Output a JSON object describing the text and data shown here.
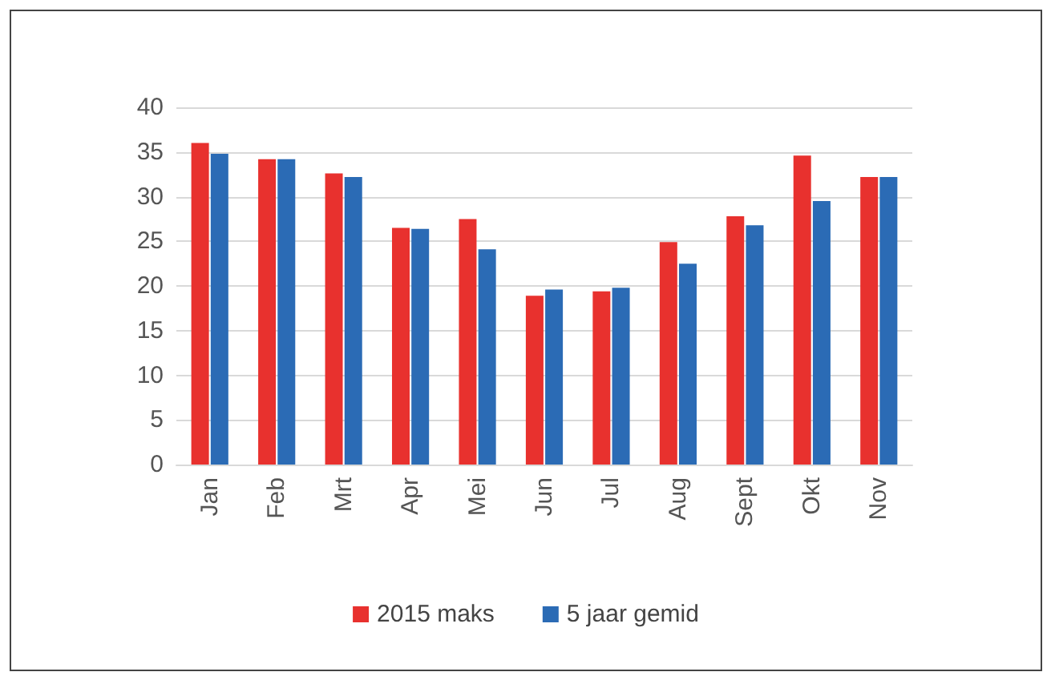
{
  "chart_data": {
    "type": "bar",
    "categories": [
      "Jan",
      "Feb",
      "Mrt",
      "Apr",
      "Mei",
      "Jun",
      "Jul",
      "Aug",
      "Sept",
      "Okt",
      "Nov"
    ],
    "series": [
      {
        "name": "2015 maks",
        "color": "#e8312e",
        "values": [
          36,
          34.2,
          32.6,
          26.5,
          27.5,
          18.9,
          19.4,
          24.9,
          27.8,
          34.6,
          32.2
        ]
      },
      {
        "name": "5 jaar gemid",
        "color": "#2b6bb5",
        "values": [
          34.8,
          34.2,
          32.2,
          26.4,
          24.1,
          19.6,
          19.8,
          22.5,
          26.8,
          29.5,
          32.2
        ]
      }
    ],
    "ylim": [
      0,
      40
    ],
    "yticks": [
      0,
      5,
      10,
      15,
      20,
      25,
      30,
      35,
      40
    ],
    "grid": "y",
    "legend": "bottom"
  }
}
